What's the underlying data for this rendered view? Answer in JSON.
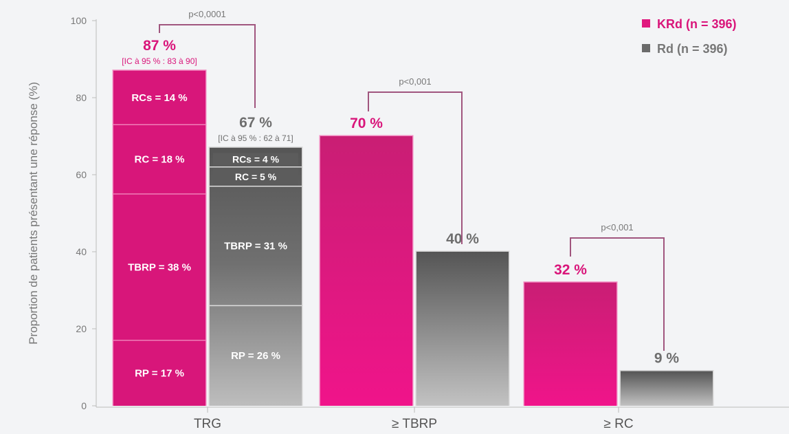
{
  "chart_data": {
    "type": "bar",
    "title": "",
    "ylabel": "Proportion de patients présentant une réponse (%)",
    "xlabel": "",
    "ylim": [
      0,
      100
    ],
    "yticks": [
      0,
      20,
      40,
      60,
      80,
      100
    ],
    "categories": [
      "TRG",
      "≥ TBRP",
      "≥ RC"
    ],
    "colors": {
      "KRd": "#e0197f",
      "Rd": "#6b6b6b",
      "krd_text": "#d9157a",
      "rd_text": "#6e6e6e",
      "bracket": "#a0557e"
    },
    "legend": {
      "position": "top-right",
      "entries": [
        "KRd (n = 396)",
        "Rd (n = 396)"
      ]
    },
    "series": [
      {
        "name": "KRd (n = 396)",
        "values": [
          87,
          70,
          32
        ],
        "labels": [
          "87 %",
          "70 %",
          "32 %"
        ]
      },
      {
        "name": "Rd (n = 396)",
        "values": [
          67,
          40,
          9
        ],
        "labels": [
          "67 %",
          "40 %",
          "9 %"
        ]
      }
    ],
    "ci": [
      "[IC à 95 % : 83 à 90]",
      "[IC à 95 % : 62 à 71]"
    ],
    "stacks": {
      "KRd": [
        {
          "label": "RP = 17 %",
          "value": 17
        },
        {
          "label": "TBRP = 38 %",
          "value": 38
        },
        {
          "label": "RC = 18 %",
          "value": 18
        },
        {
          "label": "RCs = 14 %",
          "value": 14
        }
      ],
      "Rd": [
        {
          "label": "RP = 26 %",
          "value": 26
        },
        {
          "label": "TBRP = 31 %",
          "value": 31
        },
        {
          "label": "RC = 5 %",
          "value": 5
        },
        {
          "label": "RCs = 4 %",
          "value": 4
        }
      ]
    },
    "annotations": [
      "p<0,0001",
      "p<0,001",
      "p<0,001"
    ]
  }
}
